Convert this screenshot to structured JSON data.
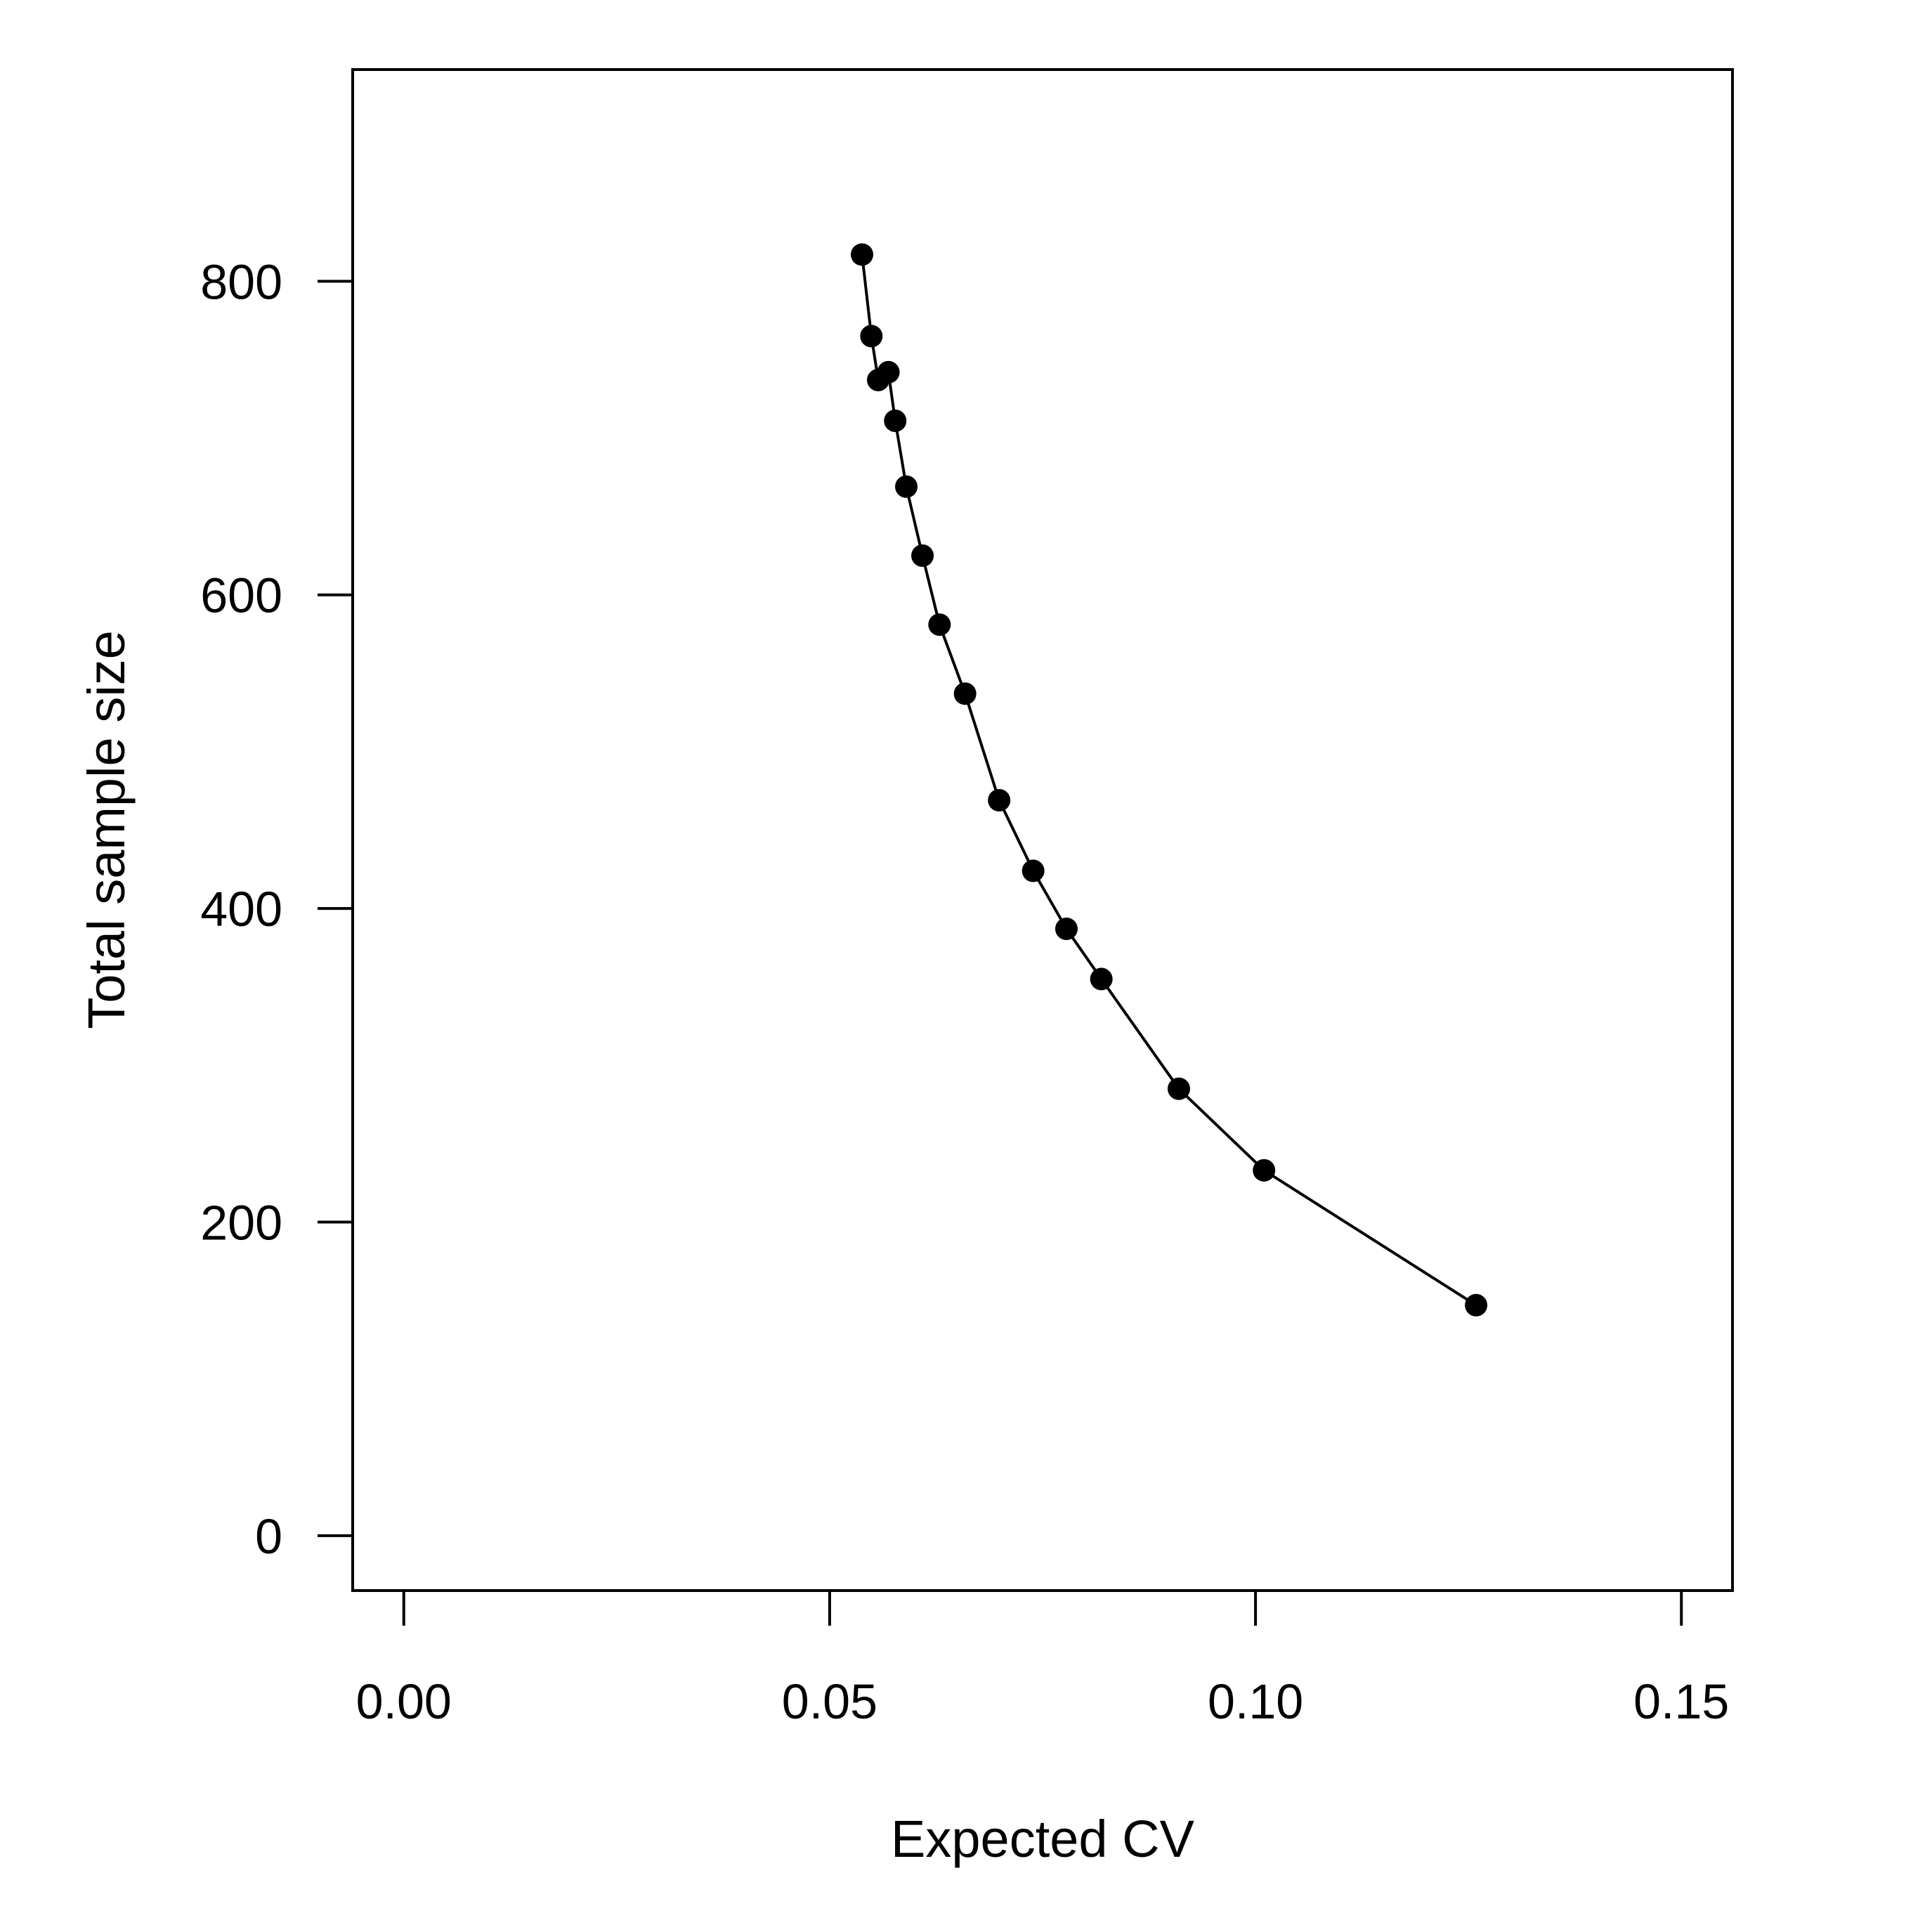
{
  "chart_data": {
    "type": "line",
    "title": "",
    "xlabel": "Expected CV",
    "ylabel": "Total sample size",
    "xlim": [
      -0.006,
      0.156
    ],
    "ylim": [
      -35,
      935
    ],
    "xticks": [
      "0.00",
      "0.05",
      "0.10",
      "0.15"
    ],
    "yticks": [
      "0",
      "200",
      "400",
      "600",
      "800"
    ],
    "grid": false,
    "legend": "none",
    "markers": "filled-circle",
    "color": "#000000",
    "series": [
      {
        "x": [
          0.0538,
          0.0549,
          0.0557,
          0.0569,
          0.0577,
          0.059,
          0.0609,
          0.0629,
          0.0659,
          0.0699,
          0.0739,
          0.0778,
          0.0819,
          0.091,
          0.101,
          0.1259
        ],
        "y": [
          817,
          765,
          737,
          742,
          711,
          669,
          625,
          581,
          537,
          469,
          424,
          387,
          355,
          285,
          233,
          147
        ]
      }
    ]
  }
}
